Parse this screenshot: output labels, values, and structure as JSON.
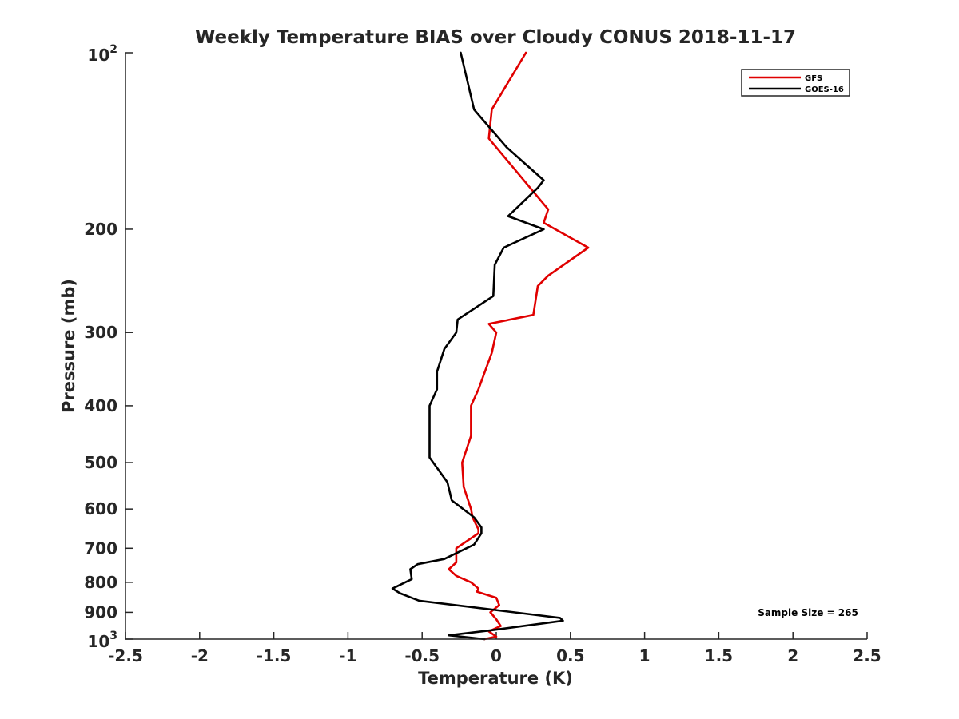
{
  "chart_data": {
    "type": "line",
    "title": "Weekly Temperature BIAS over Cloudy CONUS 2018-11-17",
    "xlabel": "Temperature (K)",
    "ylabel": "Pressure (mb)",
    "xlim": [
      -2.5,
      2.5
    ],
    "ylim": [
      100,
      1000
    ],
    "yscale": "log",
    "yreversed": true,
    "grid": false,
    "legend_position": "top-right",
    "xticks": [
      "-2.5",
      "-2",
      "-1.5",
      "-1",
      "-0.5",
      "0",
      "0.5",
      "1",
      "1.5",
      "2",
      "2.5"
    ],
    "xtick_values": [
      -2.5,
      -2,
      -1.5,
      -1,
      -0.5,
      0,
      0.5,
      1,
      1.5,
      2,
      2.5
    ],
    "yticks": [
      {
        "value": 100,
        "base": "10",
        "exp": "2"
      },
      {
        "value": 200,
        "label": "200"
      },
      {
        "value": 300,
        "label": "300"
      },
      {
        "value": 400,
        "label": "400"
      },
      {
        "value": 500,
        "label": "500"
      },
      {
        "value": 600,
        "label": "600"
      },
      {
        "value": 700,
        "label": "700"
      },
      {
        "value": 800,
        "label": "800"
      },
      {
        "value": 900,
        "label": "900"
      },
      {
        "value": 1000,
        "base": "10",
        "exp": "3"
      }
    ],
    "annotation": "Sample Size = 265",
    "series": [
      {
        "name": "GFS",
        "color": "#e00000",
        "x": [
          -0.08,
          0.0,
          -0.05,
          0.03,
          0.0,
          -0.04,
          0.02,
          0.0,
          -0.13,
          -0.12,
          -0.17,
          -0.27,
          -0.32,
          -0.27,
          -0.27,
          -0.12,
          -0.12,
          -0.16,
          -0.17,
          -0.22,
          -0.23,
          -0.17,
          -0.17,
          -0.12,
          -0.03,
          0.0,
          -0.05,
          0.25,
          0.28,
          0.35,
          0.62,
          0.32,
          0.35,
          -0.05,
          -0.03,
          0.2
        ],
        "y": [
          1000,
          990,
          970,
          950,
          925,
          900,
          875,
          850,
          830,
          820,
          800,
          780,
          760,
          740,
          700,
          660,
          650,
          620,
          600,
          550,
          500,
          450,
          400,
          375,
          325,
          300,
          290,
          280,
          250,
          240,
          215,
          195,
          185,
          140,
          125,
          100
        ]
      },
      {
        "name": "GOES-16",
        "color": "#000000",
        "x": [
          -0.08,
          -0.32,
          -0.02,
          0.45,
          0.43,
          -0.52,
          -0.65,
          -0.7,
          -0.57,
          -0.58,
          -0.53,
          -0.35,
          -0.15,
          -0.1,
          -0.1,
          -0.15,
          -0.3,
          -0.33,
          -0.45,
          -0.45,
          -0.4,
          -0.4,
          -0.35,
          -0.27,
          -0.26,
          -0.02,
          -0.01,
          0.05,
          0.32,
          0.08,
          0.28,
          0.32,
          0.07,
          -0.15,
          -0.24
        ],
        "y": [
          1000,
          985,
          965,
          930,
          920,
          860,
          835,
          820,
          790,
          760,
          745,
          730,
          690,
          660,
          645,
          620,
          580,
          540,
          490,
          400,
          375,
          350,
          320,
          300,
          285,
          260,
          230,
          215,
          200,
          190,
          170,
          165,
          145,
          125,
          100
        ]
      }
    ]
  }
}
